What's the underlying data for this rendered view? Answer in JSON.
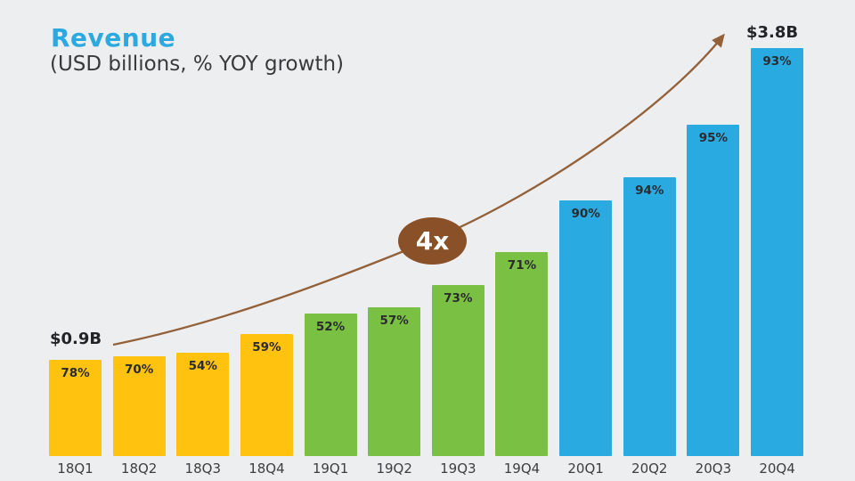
{
  "page": {
    "background_color": "#ECEEF0"
  },
  "header": {
    "title": "Revenue",
    "subtitle": "(USD billions, % YOY growth)",
    "title_color": "#2BA9E0",
    "subtitle_color": "#3A3A3C"
  },
  "annotations": {
    "start_label": "$0.9B",
    "end_label": "$3.8B",
    "multiplier_badge": "4x",
    "arrow_color": "#936038",
    "badge_color": "#8A5028",
    "badge_text_color": "#FFFFFF"
  },
  "chart_data": {
    "type": "bar",
    "title": "Revenue",
    "subtitle": "(USD billions, % YOY growth)",
    "categories": [
      "18Q1",
      "18Q2",
      "18Q3",
      "18Q4",
      "19Q1",
      "19Q2",
      "19Q3",
      "19Q4",
      "20Q1",
      "20Q2",
      "20Q3",
      "20Q4"
    ],
    "series": [
      {
        "name": "Revenue (USD billions, estimated from bar heights)",
        "values": [
          0.9,
          0.93,
          0.96,
          1.14,
          1.33,
          1.39,
          1.59,
          1.9,
          2.38,
          2.6,
          3.09,
          3.8
        ]
      },
      {
        "name": "YOY growth (%)",
        "values": [
          78,
          70,
          54,
          59,
          52,
          57,
          73,
          71,
          90,
          94,
          95,
          93
        ]
      }
    ],
    "bar_labels": [
      "78%",
      "70%",
      "54%",
      "59%",
      "52%",
      "57%",
      "73%",
      "71%",
      "90%",
      "94%",
      "95%",
      "93%"
    ],
    "bar_colors": [
      "#FFC20E",
      "#FFC20E",
      "#FFC20E",
      "#FFC20E",
      "#7AC143",
      "#7AC143",
      "#7AC143",
      "#7AC143",
      "#29ABE2",
      "#29ABE2",
      "#29ABE2",
      "#29ABE2"
    ],
    "colors_by_year": {
      "2018": "#FFC20E",
      "2019": "#7AC143",
      "2020": "#29ABE2"
    },
    "first_bar_value_label": "$0.9B",
    "last_bar_value_label": "$3.8B",
    "growth_multiplier_annotation": "4x",
    "xlabel": "",
    "ylabel": "",
    "ylim": [
      0,
      3.8
    ],
    "value_axis_hidden": true,
    "grid": false,
    "legend": "none",
    "label_text_color": "#2B2B2E",
    "axis_text_color": "#3D3E40"
  }
}
